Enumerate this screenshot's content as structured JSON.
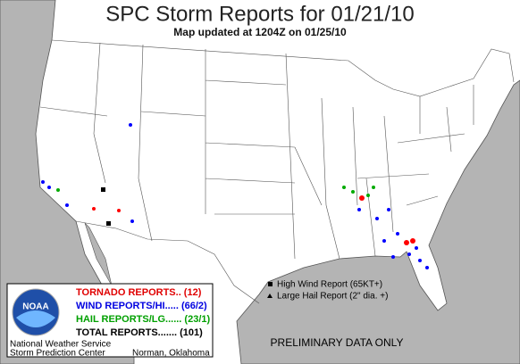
{
  "header": {
    "title": "SPC Storm Reports for 01/21/10",
    "subtitle": "Map updated at 1204Z on 01/25/10"
  },
  "legend": {
    "logo": "NOAA",
    "tornado": "TORNADO REPORTS.. (12)",
    "wind": "WIND REPORTS/HI..... (66/2)",
    "hail": "HAIL REPORTS/LG...... (23/1)",
    "total": "TOTAL REPORTS....... (101)",
    "agency": "National Weather Service",
    "center": "Storm Prediction Center",
    "location": "Norman, Oklahoma"
  },
  "key": {
    "high_wind": "High Wind Report (65KT+)",
    "large_hail": "Large Hail Report (2\" dia. +)"
  },
  "footer": {
    "notice": "PRELIMINARY DATA ONLY"
  }
}
